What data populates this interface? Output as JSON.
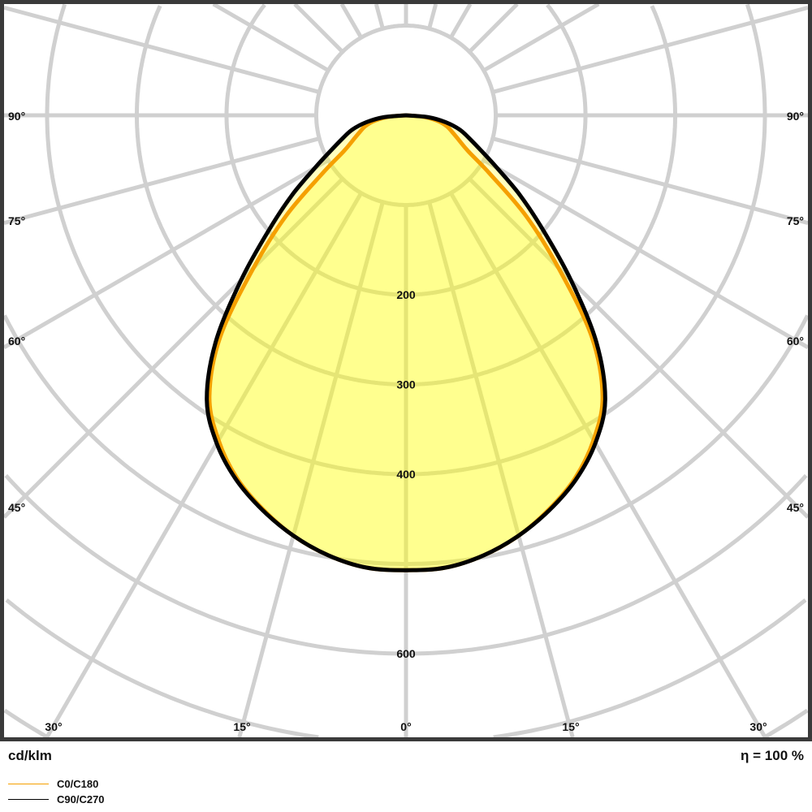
{
  "chart_data": {
    "type": "polar",
    "unit_label": "cd/klm",
    "efficiency_label": "η = 100 %",
    "radial_tick_labels": [
      "200",
      "300",
      "400",
      "600"
    ],
    "radial_ticks": [
      200,
      300,
      400,
      600
    ],
    "radial_grid": [
      100,
      200,
      300,
      400,
      500,
      600,
      700,
      800
    ],
    "angle_grid_step_deg": 15,
    "side_angle_labels": [
      "90°",
      "75°",
      "60°",
      "45°"
    ],
    "bottom_angle_labels": [
      "30°",
      "15°",
      "0°",
      "15°",
      "30°"
    ],
    "grid": true,
    "legend_position": "bottom-left",
    "series": [
      {
        "name": "C0/C180",
        "color": "#f5a000",
        "angles": [
          0,
          5,
          10,
          15,
          20,
          25,
          30,
          35,
          40,
          45,
          50,
          55,
          60,
          65,
          70,
          75,
          80,
          85,
          90
        ],
        "values": [
          507,
          506,
          498,
          485,
          467,
          446,
          418,
          382,
          322,
          240,
          175,
          115,
          80,
          65,
          55,
          47,
          36,
          20,
          0
        ]
      },
      {
        "name": "C90/C270",
        "color": "#000000",
        "angles": [
          0,
          5,
          10,
          15,
          20,
          25,
          30,
          35,
          40,
          45,
          50,
          55,
          60,
          65,
          70,
          75,
          80,
          85,
          90
        ],
        "values": [
          507,
          506,
          498,
          485,
          468,
          448,
          422,
          387,
          330,
          260,
          200,
          155,
          117,
          92,
          75,
          62,
          45,
          25,
          0
        ]
      }
    ],
    "fill_color": "#ffff00",
    "grid_color": "#d0d0d0",
    "frame_color": "#3a3a3a"
  }
}
